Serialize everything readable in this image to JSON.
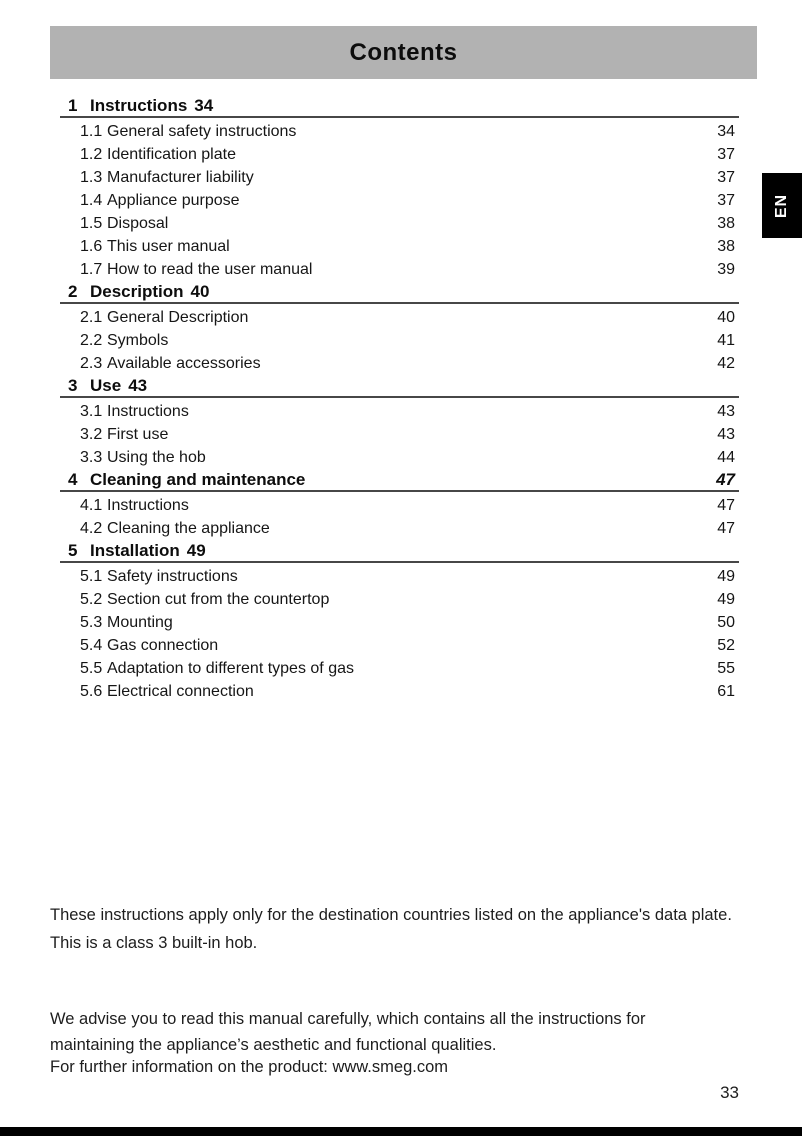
{
  "header": {
    "title": "Contents"
  },
  "language_tab": {
    "label": "EN"
  },
  "toc": {
    "sections": [
      {
        "num": "1",
        "title": "Instructions",
        "page": "34",
        "entries": [
          {
            "num": "1.1",
            "title": "General safety instructions",
            "page": "34"
          },
          {
            "num": "1.2",
            "title": "Identification plate",
            "page": "37"
          },
          {
            "num": "1.3",
            "title": "Manufacturer liability",
            "page": "37"
          },
          {
            "num": "1.4",
            "title": "Appliance purpose",
            "page": "37"
          },
          {
            "num": "1.5",
            "title": "Disposal",
            "page": "38"
          },
          {
            "num": "1.6",
            "title": "This user manual",
            "page": "38"
          },
          {
            "num": "1.7",
            "title": "How to read the user manual",
            "page": "39"
          }
        ]
      },
      {
        "num": "2",
        "title": "Description",
        "page": "40",
        "entries": [
          {
            "num": "2.1",
            "title": "General Description",
            "page": "40"
          },
          {
            "num": "2.2",
            "title": "Symbols",
            "page": "41"
          },
          {
            "num": "2.3",
            "title": "Available accessories",
            "page": "42"
          }
        ]
      },
      {
        "num": "3",
        "title": "Use",
        "page": "43",
        "entries": [
          {
            "num": "3.1",
            "title": "Instructions",
            "page": "43"
          },
          {
            "num": "3.2",
            "title": "First use",
            "page": "43"
          },
          {
            "num": "3.3",
            "title": "Using the hob",
            "page": "44"
          }
        ]
      },
      {
        "num": "4",
        "title": "Cleaning and maintenance",
        "page": "47",
        "entries": [
          {
            "num": "4.1",
            "title": "Instructions",
            "page": "47"
          },
          {
            "num": "4.2",
            "title": "Cleaning the appliance",
            "page": "47"
          }
        ]
      },
      {
        "num": "5",
        "title": "Installation",
        "page": "49",
        "entries": [
          {
            "num": "5.1",
            "title": "Safety instructions",
            "page": "49"
          },
          {
            "num": "5.2",
            "title": "Section cut from the countertop",
            "page": "49"
          },
          {
            "num": "5.3",
            "title": "Mounting",
            "page": "50"
          },
          {
            "num": "5.4",
            "title": "Gas connection",
            "page": "52"
          },
          {
            "num": "5.5",
            "title": "Adaptation to different types of gas",
            "page": "55"
          },
          {
            "num": "5.6",
            "title": "Electrical connection",
            "page": "61"
          }
        ]
      }
    ]
  },
  "notes": {
    "para1_lines": [
      "These instructions apply only for the destination countries listed on the appliance's data plate.",
      "This is a class 3 built-in hob."
    ],
    "para2_lines": [
      "We advise you to read this manual carefully, which contains all the instructions for",
      "maintaining the appliance’s aesthetic and functional qualities."
    ],
    "para3": "For further information on the product: www.smeg.com"
  },
  "footer": {
    "page_number": "33"
  },
  "colors": {
    "header_bg": "#b2b2b2",
    "tab_bg": "#000000",
    "rule": "#474747",
    "bottom_bar": "#000000"
  }
}
